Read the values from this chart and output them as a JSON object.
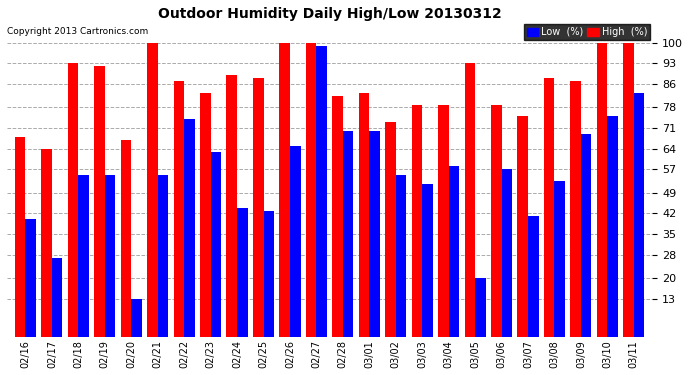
{
  "title": "Outdoor Humidity Daily High/Low 20130312",
  "copyright": "Copyright 2013 Cartronics.com",
  "dates": [
    "02/16",
    "02/17",
    "02/18",
    "02/19",
    "02/20",
    "02/21",
    "02/22",
    "02/23",
    "02/24",
    "02/25",
    "02/26",
    "02/27",
    "02/28",
    "03/01",
    "03/02",
    "03/03",
    "03/04",
    "03/05",
    "03/06",
    "03/07",
    "03/08",
    "03/09",
    "03/10",
    "03/11"
  ],
  "high_values": [
    68,
    64,
    93,
    92,
    67,
    100,
    87,
    83,
    89,
    88,
    100,
    100,
    82,
    83,
    73,
    79,
    79,
    93,
    79,
    75,
    88,
    87,
    100,
    100
  ],
  "low_values": [
    40,
    27,
    55,
    55,
    13,
    55,
    74,
    63,
    44,
    43,
    65,
    99,
    70,
    70,
    55,
    52,
    58,
    20,
    57,
    41,
    53,
    69,
    75,
    83
  ],
  "high_color": "#ff0000",
  "low_color": "#0000ff",
  "bg_color": "#ffffff",
  "plot_bg_color": "#ffffff",
  "grid_color": "#aaaaaa",
  "yticks": [
    13,
    20,
    28,
    35,
    42,
    49,
    57,
    64,
    71,
    78,
    86,
    93,
    100
  ],
  "ylim": [
    0,
    107
  ],
  "bar_width": 0.4
}
